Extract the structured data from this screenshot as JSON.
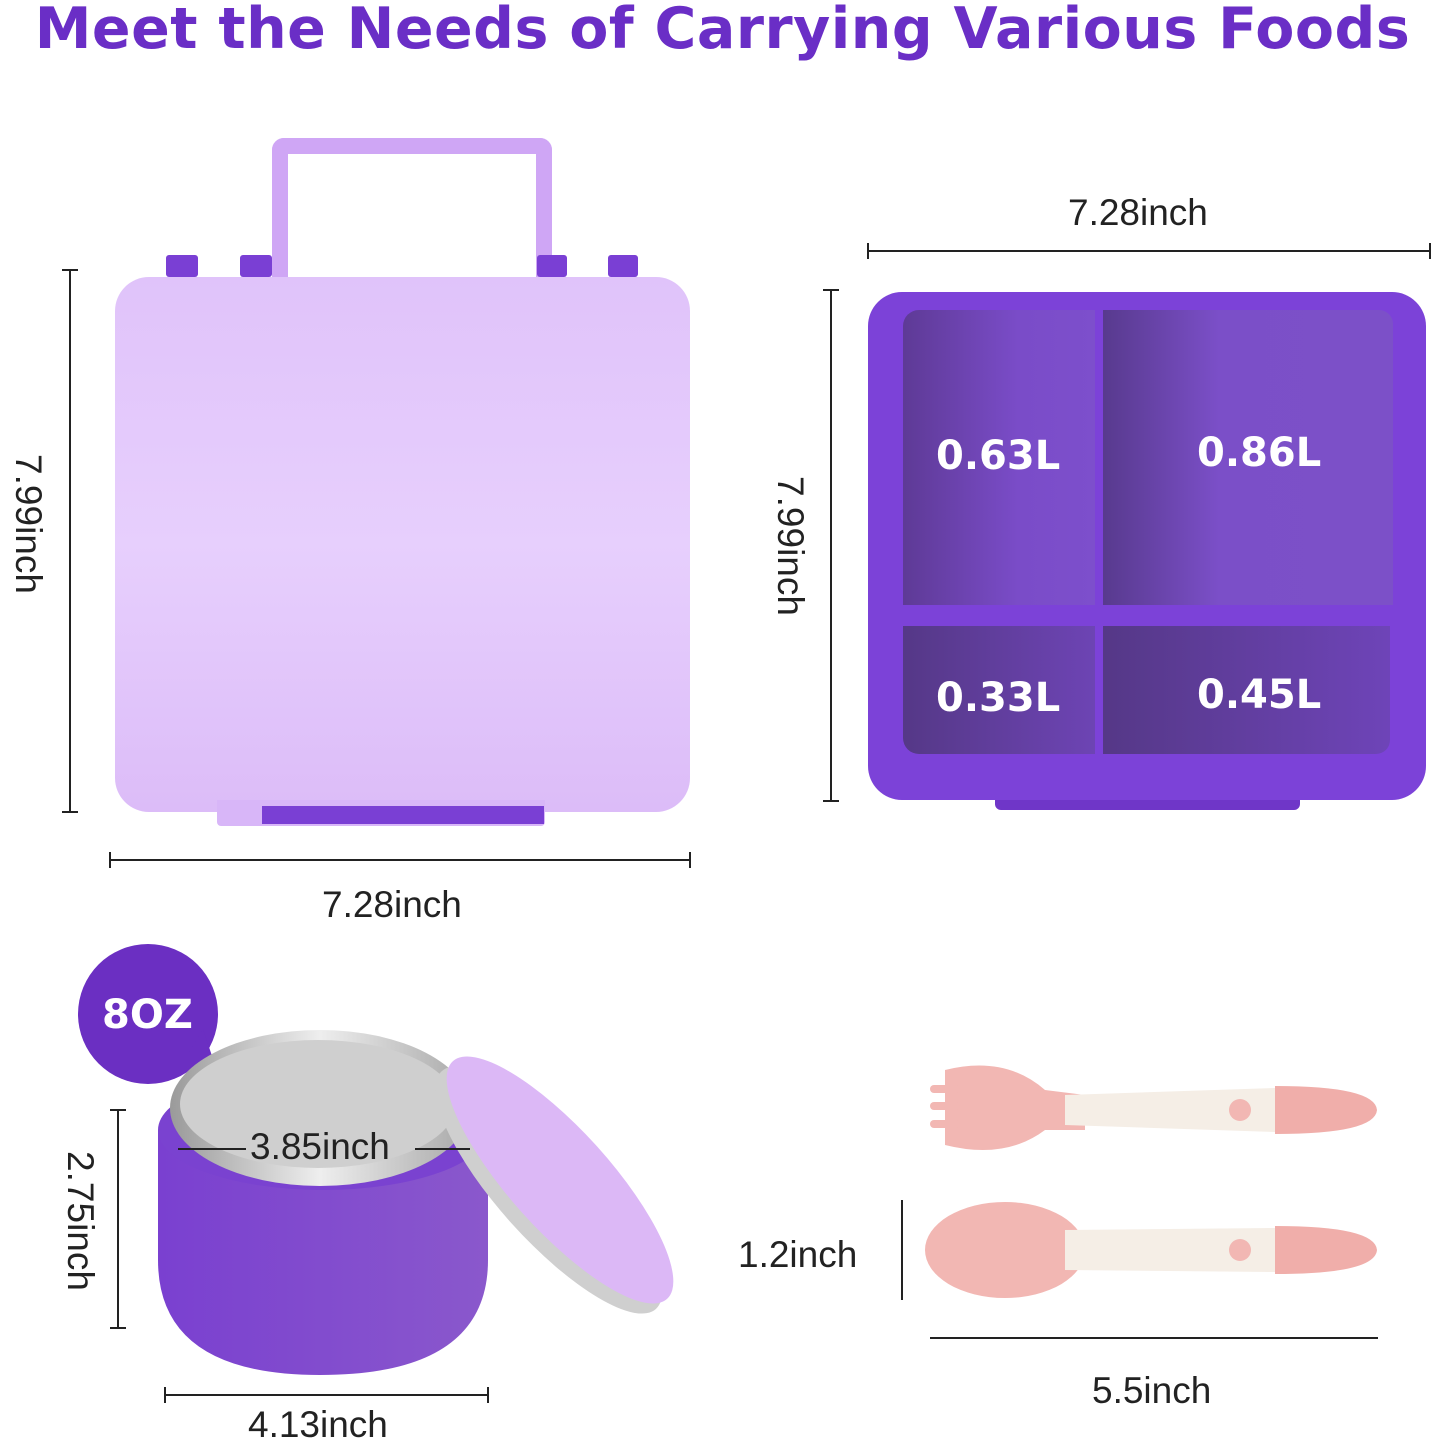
{
  "title": "Meet the Needs of Carrying Various Foods",
  "colors": {
    "title": "#6a2ec6",
    "lid": "#e3c8fb",
    "tray": "#7a3fd4",
    "jar": "#8450cc",
    "utensil_pink": "#f2b7b3",
    "utensil_cream": "#f5eee6"
  },
  "closed_box": {
    "height_label": "7.99inch",
    "width_label": "7.28inch"
  },
  "open_tray": {
    "width_label": "7.28inch",
    "height_label": "7.99inch",
    "compartments": [
      {
        "volume": "0.63L"
      },
      {
        "volume": "0.86L"
      },
      {
        "volume": "0.33L"
      },
      {
        "volume": "0.45L"
      }
    ]
  },
  "food_jar": {
    "capacity_badge": "8OZ",
    "inner_diameter_label": "3.85inch",
    "height_label": "2.75inch",
    "width_label": "4.13inch"
  },
  "utensils": {
    "head_width_label": "1.2inch",
    "length_label": "5.5inch"
  }
}
